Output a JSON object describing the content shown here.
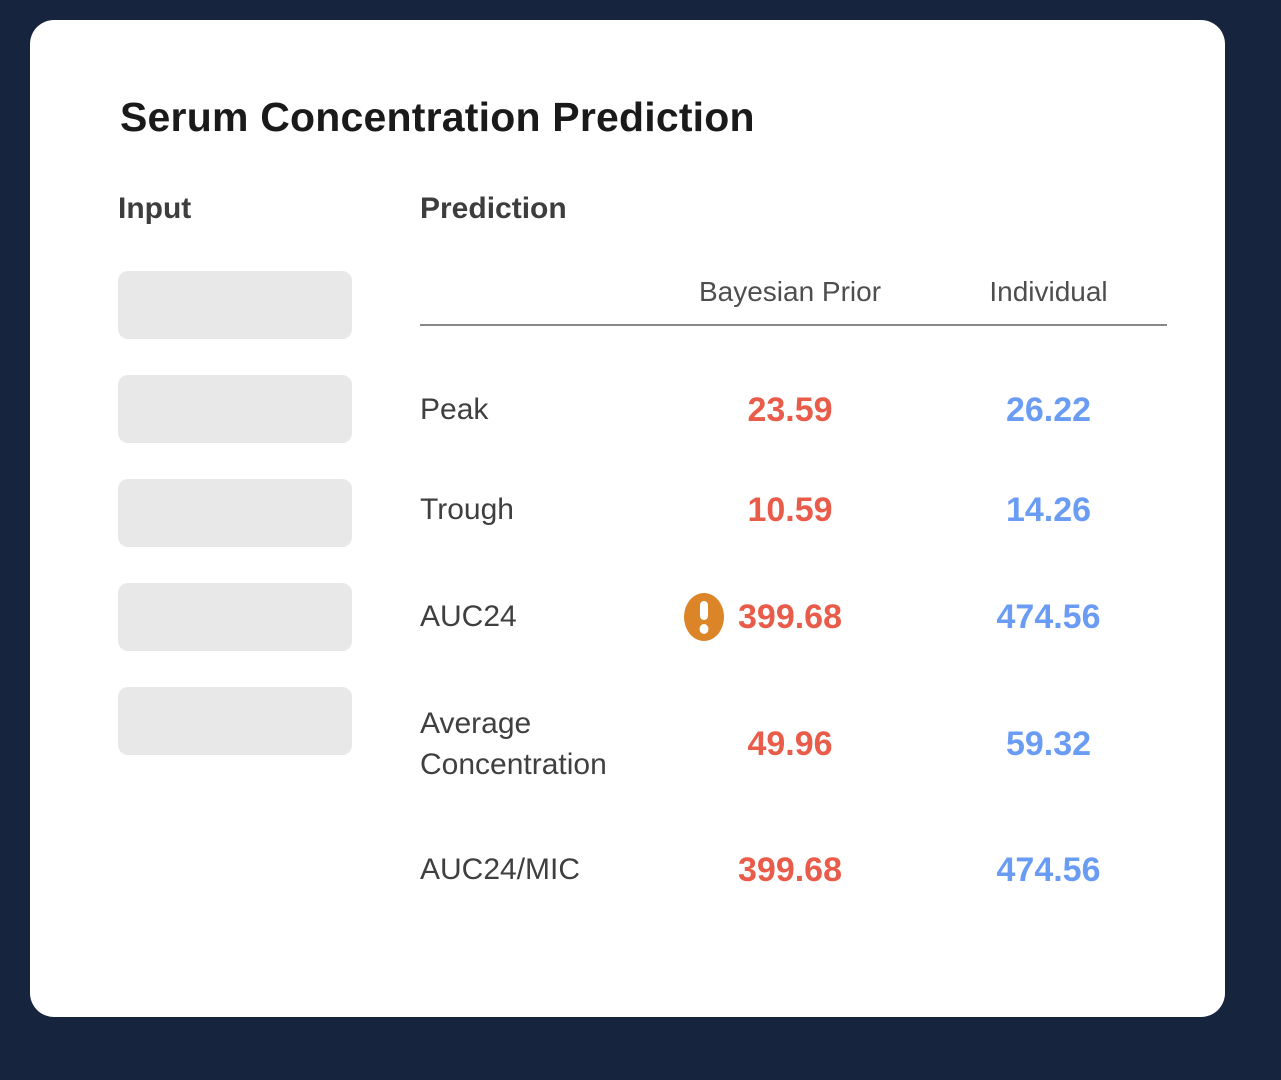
{
  "card": {
    "title": "Serum Concentration Prediction"
  },
  "input_section": {
    "heading": "Input",
    "placeholder_count": 5
  },
  "prediction_section": {
    "heading": "Prediction",
    "columns": {
      "bayesian_prior": "Bayesian Prior",
      "individual": "Individual"
    },
    "rows": [
      {
        "label": "Peak",
        "bayesian_prior": "23.59",
        "individual": "26.22",
        "warning": false
      },
      {
        "label": "Trough",
        "bayesian_prior": "10.59",
        "individual": "14.26",
        "warning": false
      },
      {
        "label": "AUC24",
        "bayesian_prior": "399.68",
        "individual": "474.56",
        "warning": true
      },
      {
        "label": "Average Concentration",
        "bayesian_prior": "49.96",
        "individual": "59.32",
        "warning": false
      },
      {
        "label": "AUC24/MIC",
        "bayesian_prior": "399.68",
        "individual": "474.56",
        "warning": false
      }
    ]
  },
  "colors": {
    "page_background": "#17243E",
    "card_background": "#FFFFFF",
    "input_placeholder": "#E8E8E8",
    "bayesian_prior_value": "#E85C49",
    "individual_value": "#6B9CF4",
    "warning_icon": "#DB8428",
    "divider": "#888888"
  }
}
